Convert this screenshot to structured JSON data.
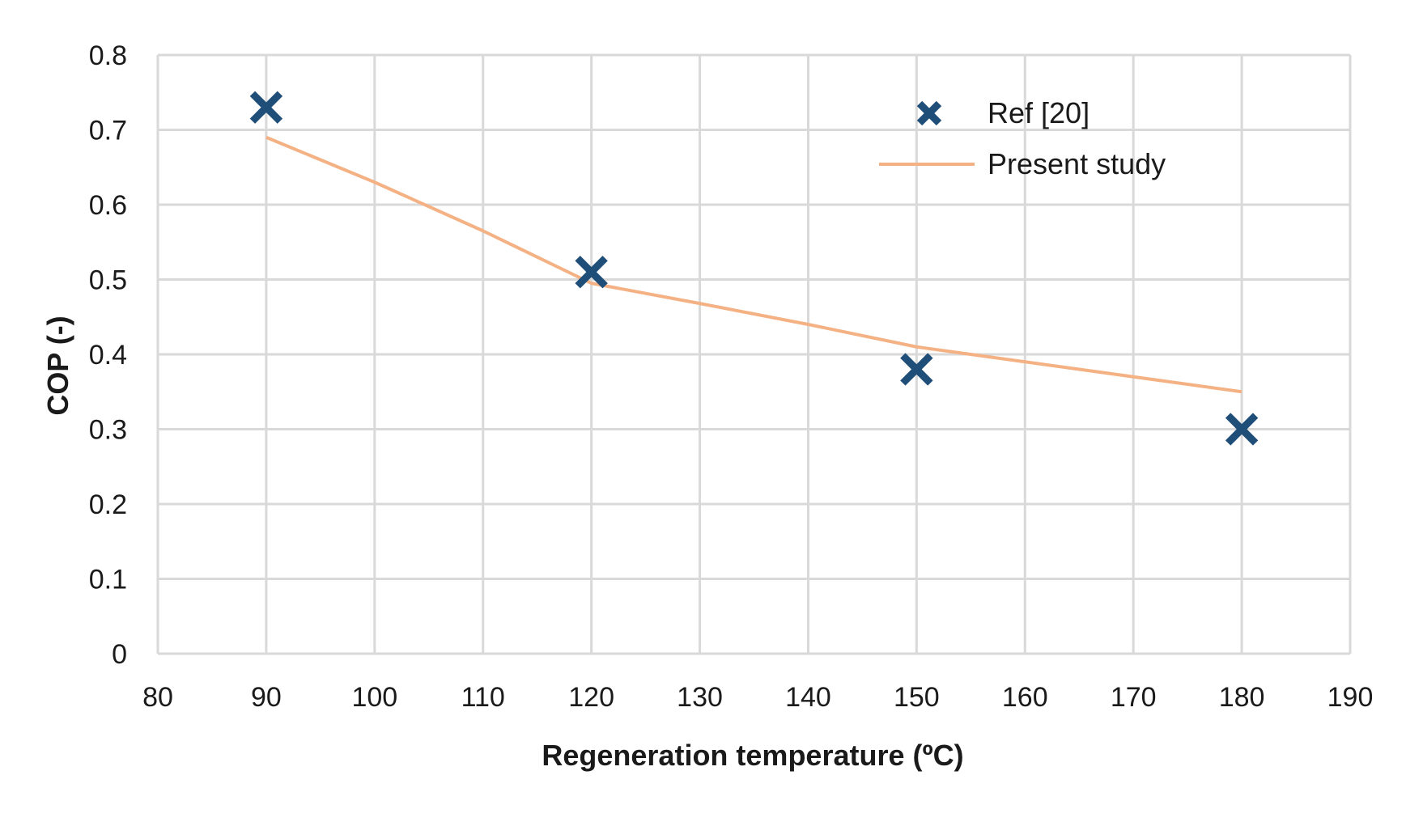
{
  "chart_data": {
    "type": "scatter",
    "title": "",
    "xlabel": "Regeneration temperature (ºC)",
    "ylabel": "COP (-)",
    "xlim": [
      80,
      190
    ],
    "ylim": [
      0,
      0.8
    ],
    "xticks": [
      80,
      90,
      100,
      110,
      120,
      130,
      140,
      150,
      160,
      170,
      180,
      190
    ],
    "yticks": [
      0,
      0.1,
      0.2,
      0.3,
      0.4,
      0.5,
      0.6,
      0.7,
      0.8
    ],
    "ytick_labels": [
      "0",
      "0.1",
      "0.2",
      "0.3",
      "0.4",
      "0.5",
      "0.6",
      "0.7",
      "0.8"
    ],
    "grid": true,
    "legend_position": "top-right",
    "series": [
      {
        "name": "Ref [20]",
        "kind": "markers",
        "marker": "x",
        "color": "#1f4e79",
        "x": [
          90,
          120,
          150,
          180
        ],
        "y": [
          0.73,
          0.51,
          0.38,
          0.3
        ]
      },
      {
        "name": "Present study",
        "kind": "line",
        "color": "#f4b183",
        "x": [
          90,
          100,
          110,
          120,
          130,
          140,
          150,
          160,
          170,
          180
        ],
        "y": [
          0.69,
          0.63,
          0.565,
          0.495,
          0.468,
          0.44,
          0.41,
          0.39,
          0.37,
          0.35
        ]
      }
    ]
  }
}
